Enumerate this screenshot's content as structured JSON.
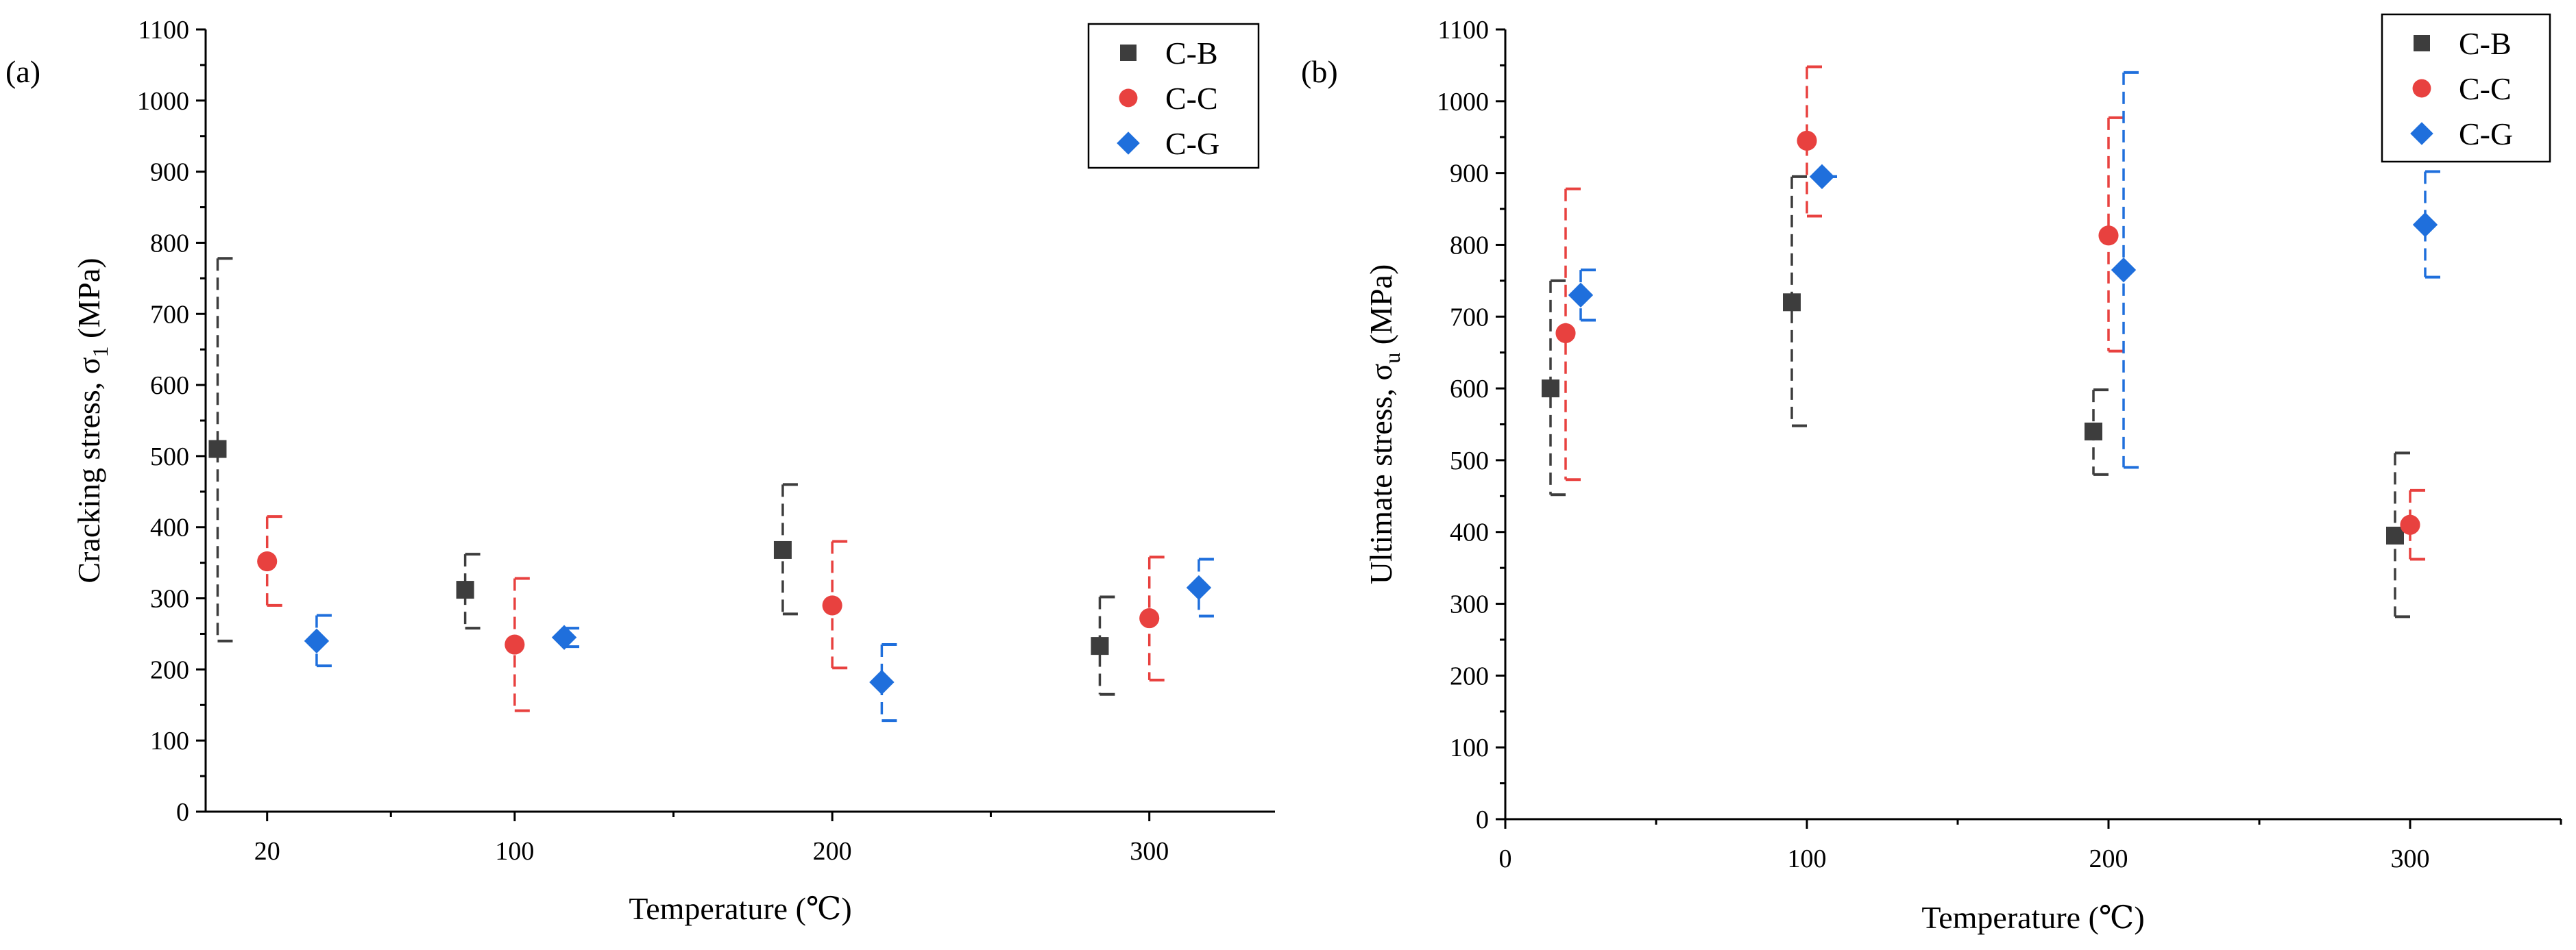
{
  "chart_data": [
    {
      "type": "scatter",
      "panel_label": "(a)",
      "xlabel": "Temperature (℃)",
      "ylabel_main": "Cracking stress, σ",
      "ylabel_sub": "1",
      "ylabel_unit": " (MPa)",
      "x_axis": "categorical",
      "categories": [
        "20",
        "100",
        "200",
        "300"
      ],
      "ylim": [
        0,
        1100
      ],
      "yticks": [
        0,
        100,
        200,
        300,
        400,
        500,
        600,
        700,
        800,
        900,
        1000,
        1100
      ],
      "yticklabels": [
        "0",
        "100",
        "200",
        "300",
        "400",
        "500",
        "600",
        "700",
        "800",
        "900",
        "1000",
        "1100"
      ],
      "legend_position": "top-right",
      "series": [
        {
          "name": "C-B",
          "marker": "square",
          "color": "#3d3d3d",
          "offset": -0.2,
          "values": [
            510,
            312,
            368,
            233
          ],
          "err_low": [
            240,
            258,
            278,
            165
          ],
          "err_high": [
            778,
            362,
            460,
            302
          ]
        },
        {
          "name": "C-C",
          "marker": "circle",
          "color": "#e8413f",
          "offset": 0,
          "values": [
            352,
            235,
            290,
            272
          ],
          "err_low": [
            290,
            142,
            202,
            185
          ],
          "err_high": [
            415,
            328,
            380,
            358
          ]
        },
        {
          "name": "C-G",
          "marker": "diamond",
          "color": "#1f6fdc",
          "offset": 0.2,
          "values": [
            240,
            245,
            182,
            315
          ],
          "err_low": [
            205,
            232,
            128,
            275
          ],
          "err_high": [
            276,
            258,
            235,
            355
          ]
        }
      ]
    },
    {
      "type": "scatter",
      "panel_label": "(b)",
      "xlabel": "Temperature (℃)",
      "ylabel_main": "Ultimate stress, σ",
      "ylabel_sub": "u",
      "ylabel_unit": " (MPa)",
      "x_axis": "numeric",
      "xlim": [
        0,
        350
      ],
      "xticks": [
        0,
        100,
        200,
        300
      ],
      "xticklabels": [
        "0",
        "100",
        "200",
        "300"
      ],
      "ylim": [
        0,
        1100
      ],
      "yticks": [
        0,
        100,
        200,
        300,
        400,
        500,
        600,
        700,
        800,
        900,
        1000,
        1100
      ],
      "yticklabels": [
        "0",
        "100",
        "200",
        "300",
        "400",
        "500",
        "600",
        "700",
        "800",
        "900",
        "1000",
        "1100"
      ],
      "legend_position": "top-right",
      "series": [
        {
          "name": "C-B",
          "marker": "square",
          "color": "#3d3d3d",
          "x": [
            15,
            95,
            195,
            295
          ],
          "values": [
            600,
            720,
            540,
            395
          ],
          "err_low": [
            452,
            548,
            480,
            282
          ],
          "err_high": [
            750,
            895,
            598,
            510
          ]
        },
        {
          "name": "C-C",
          "marker": "circle",
          "color": "#e8413f",
          "x": [
            20,
            100,
            200,
            300
          ],
          "values": [
            677,
            945,
            813,
            410
          ],
          "err_low": [
            473,
            840,
            652,
            362
          ],
          "err_high": [
            878,
            1048,
            977,
            458
          ]
        },
        {
          "name": "C-G",
          "marker": "diamond",
          "color": "#1f6fdc",
          "x": [
            25,
            105,
            205,
            305
          ],
          "values": [
            730,
            895,
            765,
            828
          ],
          "err_low": [
            695,
            895,
            490,
            755
          ],
          "err_high": [
            765,
            895,
            1040,
            902
          ]
        }
      ]
    }
  ]
}
